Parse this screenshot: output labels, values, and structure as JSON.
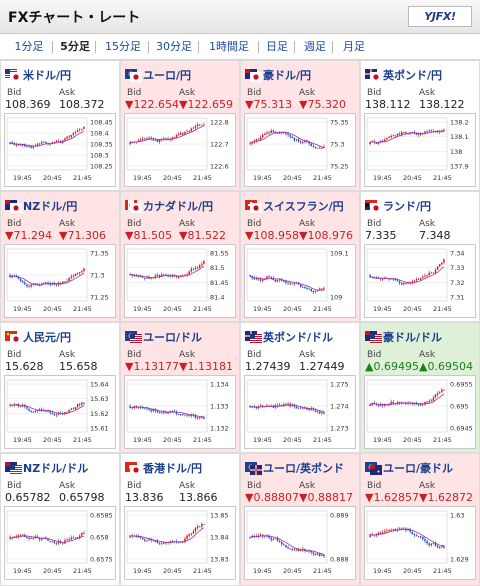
{
  "header": {
    "title": "FXチャート・レート",
    "logo_left": "YJFX!",
    "logo_right": ""
  },
  "tabs": [
    {
      "label": "1分足",
      "active": false
    },
    {
      "label": "5分足",
      "active": true
    },
    {
      "label": "15分足",
      "active": false
    },
    {
      "label": "30分足",
      "active": false
    },
    {
      "label": "1時間足",
      "active": false
    },
    {
      "label": "日足",
      "active": false
    },
    {
      "label": "週足",
      "active": false
    },
    {
      "label": "月足",
      "active": false
    }
  ],
  "labels": {
    "bid": "Bid",
    "ask": "Ask"
  },
  "colors": {
    "up_bg": "#ffe4e6",
    "down_bg": "#dff0d8",
    "up_text": "#cc1f24",
    "down_text": "#17821a",
    "candle_up": "#d7191c",
    "candle_down": "#1f4fb4",
    "ma_line": "#9b2fb0"
  },
  "cards": [
    {
      "pair": "米ドル/円",
      "flags": [
        "us",
        "jp"
      ],
      "trend": "flat",
      "bid": "108.369",
      "ask": "108.372",
      "ticks": [
        "108.45",
        "108.4",
        "108.35",
        "108.3",
        "108.25"
      ],
      "times": [
        "19:45",
        "20:45",
        "21:45"
      ],
      "seed": 11,
      "shape": "up"
    },
    {
      "pair": "ユーロ/円",
      "flags": [
        "eu",
        "jp"
      ],
      "trend": "up",
      "bid": "▼122.654",
      "ask": "▼122.659",
      "ticks": [
        "122.8",
        "122.7",
        "122.6"
      ],
      "times": [
        "19:45",
        "20:45",
        "21:45"
      ],
      "seed": 23,
      "shape": "up"
    },
    {
      "pair": "豪ドル/円",
      "flags": [
        "au",
        "jp"
      ],
      "trend": "up",
      "bid": "▼75.313",
      "ask": "▼75.320",
      "ticks": [
        "75.35",
        "75.3",
        "75.25"
      ],
      "times": [
        "19:45",
        "20:45",
        "21:45"
      ],
      "seed": 37,
      "shape": "mixed"
    },
    {
      "pair": "英ポンド/円",
      "flags": [
        "gb",
        "jp"
      ],
      "trend": "flat",
      "bid": "138.112",
      "ask": "138.122",
      "ticks": [
        "138.2",
        "138.1",
        "138",
        "137.9"
      ],
      "times": [
        "19:45",
        "20:45",
        "21:45"
      ],
      "seed": 41,
      "shape": "mixed"
    },
    {
      "pair": "NZドル/円",
      "flags": [
        "nz",
        "jp"
      ],
      "trend": "up",
      "bid": "▼71.294",
      "ask": "▼71.306",
      "ticks": [
        "71.35",
        "71.3",
        "71.25"
      ],
      "times": [
        "19:45",
        "20:45",
        "21:45"
      ],
      "seed": 53,
      "shape": "up"
    },
    {
      "pair": "カナダドル/円",
      "flags": [
        "ca",
        "jp"
      ],
      "trend": "up",
      "bid": "▼81.505",
      "ask": "▼81.522",
      "ticks": [
        "81.55",
        "81.5",
        "81.45",
        "81.4"
      ],
      "times": [
        "19:45",
        "20:45",
        "21:45"
      ],
      "seed": 67,
      "shape": "up"
    },
    {
      "pair": "スイスフラン/円",
      "flags": [
        "ch",
        "jp"
      ],
      "trend": "up",
      "bid": "▼108.958",
      "ask": "▼108.976",
      "ticks": [
        "109.1",
        "109"
      ],
      "times": [
        "19:45",
        "20:45",
        "21:45"
      ],
      "seed": 71,
      "shape": "down"
    },
    {
      "pair": "ランド/円",
      "flags": [
        "za",
        "jp"
      ],
      "trend": "flat",
      "bid": "7.335",
      "ask": "7.348",
      "ticks": [
        "7.34",
        "7.33",
        "7.32",
        "7.31"
      ],
      "times": [
        "19:45",
        "20:45",
        "21:45"
      ],
      "seed": 83,
      "shape": "up"
    },
    {
      "pair": "人民元/円",
      "flags": [
        "cn",
        "jp"
      ],
      "trend": "flat",
      "bid": "15.628",
      "ask": "15.658",
      "ticks": [
        "15.64",
        "15.63",
        "15.62",
        "15.61"
      ],
      "times": [
        "19:45",
        "20:45",
        "21:45"
      ],
      "seed": 97,
      "shape": "up"
    },
    {
      "pair": "ユーロ/ドル",
      "flags": [
        "eu",
        "us"
      ],
      "trend": "up",
      "bid": "▼1.13177",
      "ask": "▼1.13181",
      "ticks": [
        "1.134",
        "1.133",
        "1.132"
      ],
      "times": [
        "19:45",
        "20:45",
        "21:45"
      ],
      "seed": 101,
      "shape": "mixed"
    },
    {
      "pair": "英ポンド/ドル",
      "flags": [
        "gb",
        "us"
      ],
      "trend": "flat",
      "bid": "1.27439",
      "ask": "1.27449",
      "ticks": [
        "1.275",
        "1.274",
        "1.273"
      ],
      "times": [
        "19:45",
        "20:45",
        "21:45"
      ],
      "seed": 113,
      "shape": "mixed"
    },
    {
      "pair": "豪ドル/ドル",
      "flags": [
        "au",
        "us"
      ],
      "trend": "down",
      "bid": "▲0.69495",
      "ask": "▲0.69504",
      "ticks": [
        "0.6955",
        "0.695",
        "0.6945"
      ],
      "times": [
        "19:45",
        "20:45",
        "21:45"
      ],
      "seed": 127,
      "shape": "up"
    },
    {
      "pair": "NZドル/ドル",
      "flags": [
        "nz",
        "us"
      ],
      "trend": "flat",
      "bid": "0.65782",
      "ask": "0.65798",
      "ticks": [
        "0.6585",
        "0.658",
        "0.6575"
      ],
      "times": [
        "19:45",
        "20:45",
        "21:45"
      ],
      "seed": 131,
      "shape": "up"
    },
    {
      "pair": "香港ドル/円",
      "flags": [
        "hk",
        "jp"
      ],
      "trend": "flat",
      "bid": "13.836",
      "ask": "13.866",
      "ticks": [
        "13.85",
        "13.84",
        "13.83"
      ],
      "times": [
        "19:45",
        "20:45",
        "21:45"
      ],
      "seed": 139,
      "shape": "up"
    },
    {
      "pair": "ユーロ/英ポンド",
      "flags": [
        "eu",
        "gb"
      ],
      "trend": "up",
      "bid": "▼0.88807",
      "ask": "▼0.88817",
      "ticks": [
        "0.889",
        "0.888"
      ],
      "times": [
        "19:45",
        "20:45",
        "21:45"
      ],
      "seed": 149,
      "shape": "down"
    },
    {
      "pair": "ユーロ/豪ドル",
      "flags": [
        "eu",
        "au"
      ],
      "trend": "up",
      "bid": "▼1.62857",
      "ask": "▼1.62872",
      "ticks": [
        "1.63",
        "1.629"
      ],
      "times": [
        "19:45",
        "20:45",
        "21:45"
      ],
      "seed": 157,
      "shape": "down"
    }
  ]
}
